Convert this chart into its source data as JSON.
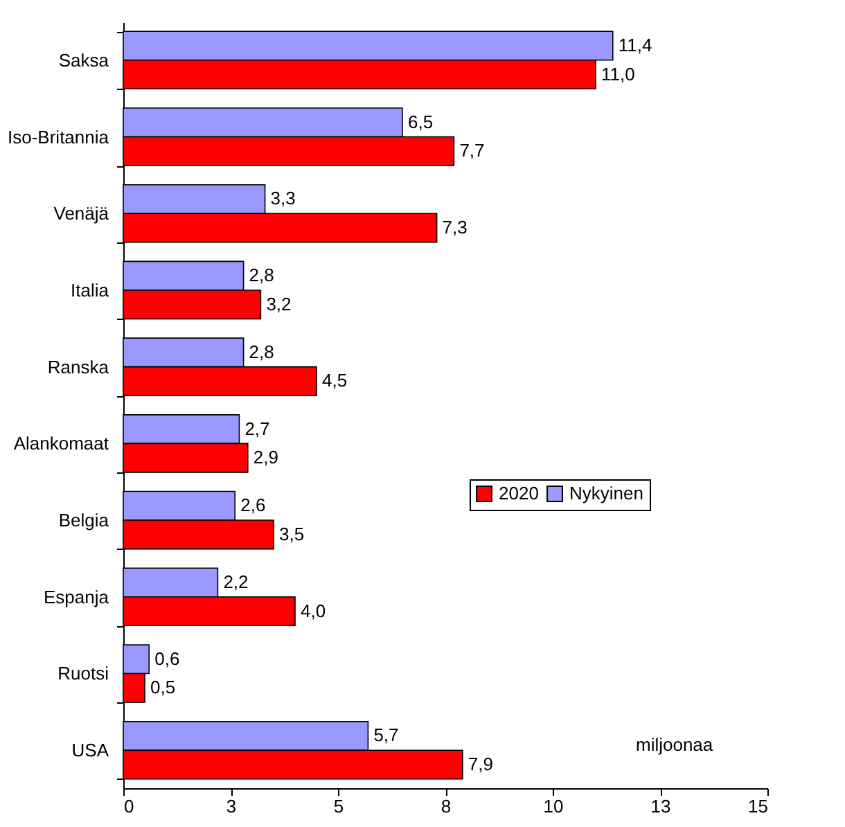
{
  "chart_data": {
    "type": "bar",
    "orientation": "horizontal",
    "categories": [
      "Saksa",
      "Iso-Britannia",
      "Venäjä",
      "Italia",
      "Ranska",
      "Alankomaat",
      "Belgia",
      "Espanja",
      "Ruotsi",
      "USA"
    ],
    "series": [
      {
        "name": "Nykyinen",
        "color": "#9999ff",
        "values": [
          11.4,
          6.5,
          3.3,
          2.8,
          2.8,
          2.7,
          2.6,
          2.2,
          0.6,
          5.7
        ],
        "value_labels": [
          "11,4",
          "6,5",
          "3,3",
          "2,8",
          "2,8",
          "2,7",
          "2,6",
          "2,2",
          "0,6",
          "5,7"
        ]
      },
      {
        "name": "2020",
        "color": "#ff0000",
        "values": [
          11.0,
          7.7,
          7.3,
          3.2,
          4.5,
          2.9,
          3.5,
          4.0,
          0.5,
          7.9
        ],
        "value_labels": [
          "11,0",
          "7,7",
          "7,3",
          "3,2",
          "4,5",
          "2,9",
          "3,5",
          "4,0",
          "0,5",
          "7,9"
        ]
      }
    ],
    "xlim": [
      0,
      15
    ],
    "xticks": [
      0,
      {
        "value": 2.5,
        "label": "3"
      },
      5,
      {
        "value": 7.5,
        "label": "8"
      },
      10,
      {
        "value": 12.5,
        "label": "13"
      },
      15
    ],
    "grid": false,
    "legend": "right",
    "annotations": [
      "miljoonaa"
    ]
  }
}
